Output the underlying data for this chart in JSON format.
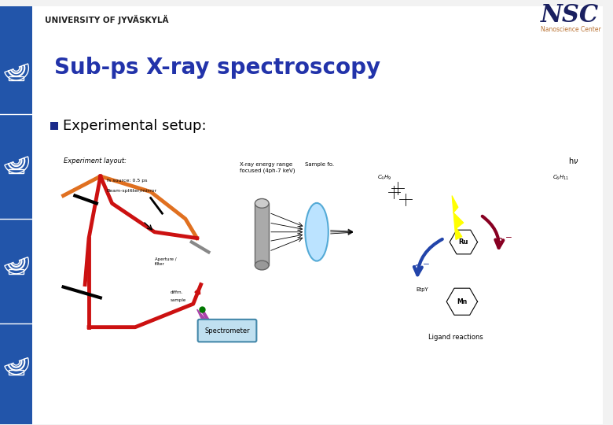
{
  "title": "Sub-ps X-ray spectroscopy",
  "university_text": "UNIVERSITY OF JYVÄSKYLÄ",
  "nsc_text": "NSC",
  "nsc_sub": "Nanoscience Center",
  "bullet_text": "Experimental setup:",
  "slide_bg": "#f2f2f2",
  "left_bar_color": "#2255aa",
  "title_color": "#2233aa",
  "bullet_square_color": "#1a2a8a",
  "text_color": "#000000",
  "nsc_color": "#1a2060",
  "nsc_sub_color": "#b87030",
  "orange": "#e07020",
  "red_beam": "#cc1111",
  "purple": "#aa44aa",
  "green": "#007700"
}
